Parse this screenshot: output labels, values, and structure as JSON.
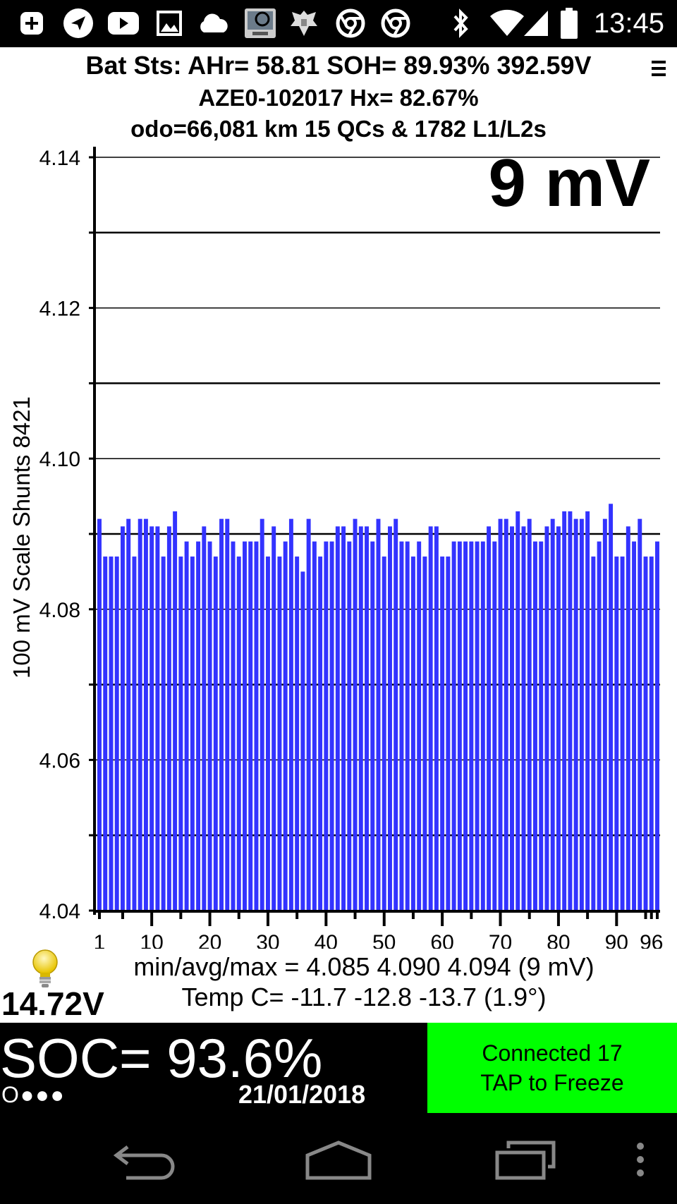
{
  "status_bar": {
    "time": "13:45",
    "icons": [
      "add-icon",
      "send-icon",
      "youtube-icon",
      "image-icon",
      "cloud-icon",
      "app-thumbnail-icon",
      "emblem-icon",
      "chrome-icon",
      "chrome-icon",
      "bluetooth-icon",
      "wifi-icon",
      "signal-icon",
      "battery-icon"
    ]
  },
  "header": {
    "line1": "Bat Sts: AHr= 58.81 SOH= 89.93% 392.59V",
    "line2": "AZE0-102017   Hx= 82.67%",
    "line3": "odo=66,081 km 15 QCs & 1782 L1/L2s"
  },
  "chart_data": {
    "type": "bar",
    "ylabel": "100 mV Scale   Shunts 8421",
    "spread_label": "9 mV",
    "ylim": [
      4.04,
      4.14
    ],
    "yticks": [
      "4.14",
      "4.12",
      "4.10",
      "4.08",
      "4.06",
      "4.04"
    ],
    "xticks": [
      "1",
      "10",
      "20",
      "30",
      "40",
      "50",
      "60",
      "70",
      "80",
      "90",
      "96"
    ],
    "bar_color": "#3333ff",
    "grid": true,
    "values": [
      4.092,
      4.087,
      4.087,
      4.087,
      4.091,
      4.092,
      4.087,
      4.092,
      4.092,
      4.091,
      4.091,
      4.087,
      4.091,
      4.093,
      4.087,
      4.089,
      4.087,
      4.089,
      4.091,
      4.089,
      4.087,
      4.092,
      4.092,
      4.089,
      4.087,
      4.089,
      4.089,
      4.089,
      4.092,
      4.087,
      4.091,
      4.087,
      4.089,
      4.092,
      4.087,
      4.085,
      4.092,
      4.089,
      4.087,
      4.089,
      4.089,
      4.091,
      4.091,
      4.089,
      4.092,
      4.091,
      4.091,
      4.089,
      4.092,
      4.087,
      4.091,
      4.092,
      4.089,
      4.089,
      4.087,
      4.089,
      4.087,
      4.091,
      4.091,
      4.087,
      4.087,
      4.089,
      4.089,
      4.089,
      4.089,
      4.089,
      4.089,
      4.091,
      4.089,
      4.092,
      4.092,
      4.091,
      4.093,
      4.091,
      4.092,
      4.089,
      4.089,
      4.091,
      4.092,
      4.091,
      4.093,
      4.093,
      4.092,
      4.092,
      4.093,
      4.087,
      4.089,
      4.092,
      4.094,
      4.087,
      4.087,
      4.091,
      4.089,
      4.092,
      4.087,
      4.087,
      4.089
    ]
  },
  "footer": {
    "stats": "min/avg/max = 4.085 4.090 4.094  (9 mV)",
    "temp": "Temp C= -11.7  -12.8  -13.7  (1.9°)",
    "voltage": "14.72V"
  },
  "bottom": {
    "soc": "SOC= 93.6%",
    "dots": "O●●●",
    "date": "21/01/2018",
    "connected_line1": "Connected 17",
    "connected_line2": "TAP to Freeze",
    "connected_color": "#00ff00"
  },
  "nav": {
    "buttons": [
      "back-icon",
      "home-icon",
      "recents-icon",
      "overflow-menu-icon"
    ]
  }
}
